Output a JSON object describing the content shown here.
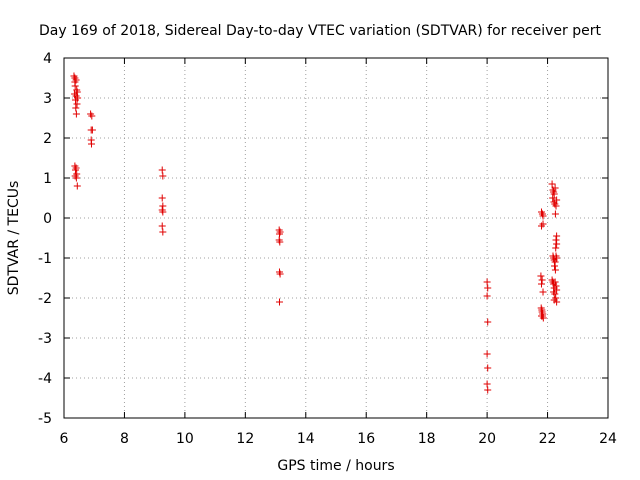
{
  "chart_data": {
    "type": "scatter",
    "title": "Day 169 of 2018, Sidereal Day-to-day VTEC variation (SDTVAR) for receiver pert",
    "xlabel": "GPS time / hours",
    "ylabel": "SDTVAR / TECUs",
    "xlim": [
      6,
      24
    ],
    "ylim": [
      -5,
      4
    ],
    "xticks": [
      "6",
      "8",
      "10",
      "12",
      "14",
      "16",
      "18",
      "20",
      "22",
      "24"
    ],
    "yticks": [
      "-5",
      "-4",
      "-3",
      "-2",
      "-1",
      "0",
      "1",
      "2",
      "3",
      "4"
    ],
    "grid": true,
    "marker": "+",
    "marker_color": "#e00000",
    "series": [
      {
        "name": "SDTVAR",
        "points": [
          [
            6.33,
            3.55
          ],
          [
            6.36,
            3.5
          ],
          [
            6.4,
            3.45
          ],
          [
            6.37,
            3.3
          ],
          [
            6.42,
            3.2
          ],
          [
            6.35,
            3.1
          ],
          [
            6.4,
            3.05
          ],
          [
            6.45,
            3.0
          ],
          [
            6.38,
            2.95
          ],
          [
            6.43,
            2.85
          ],
          [
            6.39,
            2.75
          ],
          [
            6.41,
            2.6
          ],
          [
            6.44,
            3.15
          ],
          [
            6.36,
            3.4
          ],
          [
            6.36,
            1.3
          ],
          [
            6.4,
            1.25
          ],
          [
            6.38,
            1.2
          ],
          [
            6.42,
            1.1
          ],
          [
            6.37,
            1.05
          ],
          [
            6.41,
            1.0
          ],
          [
            6.44,
            0.8
          ],
          [
            6.88,
            2.6
          ],
          [
            6.92,
            2.55
          ],
          [
            6.9,
            2.2
          ],
          [
            6.94,
            2.2
          ],
          [
            6.9,
            1.95
          ],
          [
            6.91,
            1.85
          ],
          [
            9.25,
            1.2
          ],
          [
            9.27,
            1.05
          ],
          [
            9.25,
            0.5
          ],
          [
            9.27,
            0.3
          ],
          [
            9.25,
            0.2
          ],
          [
            9.27,
            0.15
          ],
          [
            9.25,
            -0.2
          ],
          [
            9.27,
            -0.35
          ],
          [
            13.12,
            -0.3
          ],
          [
            13.15,
            -0.35
          ],
          [
            13.13,
            -0.4
          ],
          [
            13.12,
            -0.55
          ],
          [
            13.14,
            -0.6
          ],
          [
            13.13,
            -1.35
          ],
          [
            13.15,
            -1.4
          ],
          [
            13.13,
            -2.1
          ],
          [
            20.0,
            -1.6
          ],
          [
            20.02,
            -1.75
          ],
          [
            20.0,
            -1.95
          ],
          [
            20.02,
            -2.6
          ],
          [
            20.0,
            -3.4
          ],
          [
            20.02,
            -3.75
          ],
          [
            20.0,
            -4.15
          ],
          [
            20.02,
            -4.3
          ],
          [
            21.8,
            0.15
          ],
          [
            21.83,
            0.1
          ],
          [
            21.85,
            0.05
          ],
          [
            21.8,
            -0.2
          ],
          [
            21.85,
            -0.15
          ],
          [
            21.78,
            -1.45
          ],
          [
            21.82,
            -1.55
          ],
          [
            21.8,
            -1.65
          ],
          [
            21.85,
            -1.85
          ],
          [
            21.79,
            -2.25
          ],
          [
            21.82,
            -2.35
          ],
          [
            21.84,
            -2.4
          ],
          [
            21.8,
            -2.45
          ],
          [
            21.86,
            -2.5
          ],
          [
            21.81,
            -2.3
          ],
          [
            21.83,
            -2.45
          ],
          [
            22.15,
            0.85
          ],
          [
            22.18,
            0.7
          ],
          [
            22.2,
            0.65
          ],
          [
            22.22,
            0.6
          ],
          [
            22.25,
            0.75
          ],
          [
            22.17,
            0.5
          ],
          [
            22.21,
            0.4
          ],
          [
            22.24,
            0.35
          ],
          [
            22.28,
            0.3
          ],
          [
            22.26,
            0.1
          ],
          [
            22.3,
            0.45
          ],
          [
            22.3,
            -0.45
          ],
          [
            22.28,
            -0.55
          ],
          [
            22.3,
            -0.65
          ],
          [
            22.27,
            -0.75
          ],
          [
            22.18,
            -0.95
          ],
          [
            22.2,
            -1.0
          ],
          [
            22.22,
            -1.05
          ],
          [
            22.25,
            -1.1
          ],
          [
            22.28,
            -0.95
          ],
          [
            22.3,
            -1.0
          ],
          [
            22.23,
            -1.2
          ],
          [
            22.26,
            -1.3
          ],
          [
            22.15,
            -1.55
          ],
          [
            22.18,
            -1.6
          ],
          [
            22.2,
            -1.65
          ],
          [
            22.22,
            -1.75
          ],
          [
            22.25,
            -1.6
          ],
          [
            22.28,
            -1.7
          ],
          [
            22.3,
            -1.8
          ],
          [
            22.2,
            -1.85
          ],
          [
            22.24,
            -1.9
          ],
          [
            22.27,
            -2.0
          ],
          [
            22.3,
            -2.1
          ],
          [
            22.22,
            -2.05
          ]
        ]
      }
    ]
  }
}
